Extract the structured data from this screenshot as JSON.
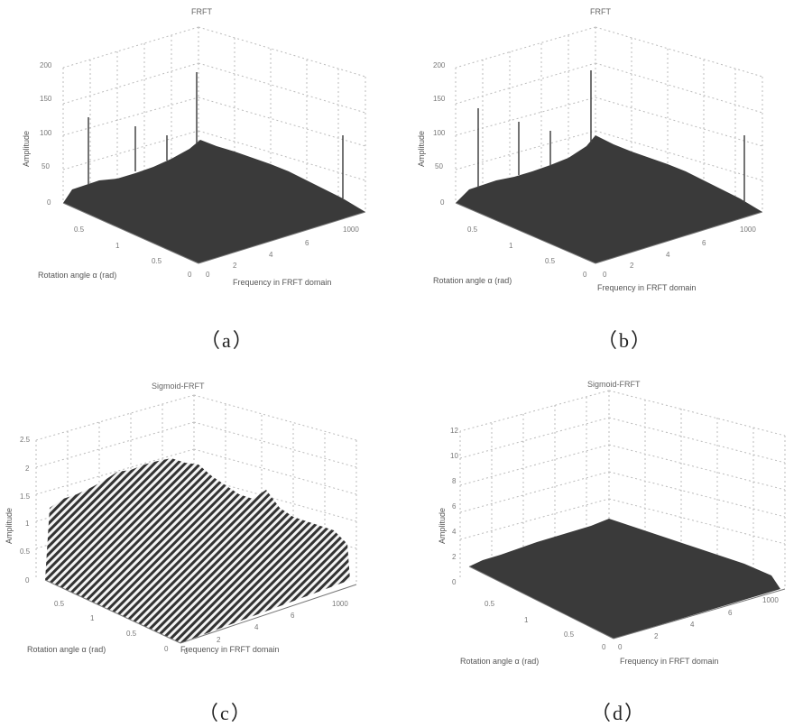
{
  "panels": [
    {
      "id": "a",
      "title": "FRFT",
      "caption": "（a）",
      "ylabel": "Amplitude",
      "xlabel": "Rotation angle α (rad)",
      "zlabel": "Frequency in FRFT domain",
      "yticks": [
        "200",
        "150",
        "100",
        "50",
        "0"
      ],
      "aticks": [
        "0.5",
        "1",
        "0.5",
        "0"
      ],
      "fticks": [
        "0",
        "2",
        "4",
        "6",
        "1000"
      ]
    },
    {
      "id": "b",
      "title": "FRFT",
      "caption": "（b）",
      "ylabel": "Amplitude",
      "xlabel": "Rotation angle α (rad)",
      "zlabel": "Frequency in FRFT domain",
      "yticks": [
        "200",
        "150",
        "100",
        "50",
        "0"
      ],
      "aticks": [
        "0.5",
        "1",
        "0.5",
        "0"
      ],
      "fticks": [
        "0",
        "2",
        "4",
        "6",
        "1000"
      ]
    },
    {
      "id": "c",
      "title": "Sigmoid-FRFT",
      "caption": "（c）",
      "ylabel": "Amplitude",
      "xlabel": "Rotation angle α (rad)",
      "zlabel": "Frequency in FRFT domain",
      "yticks": [
        "2.5",
        "2",
        "1.5",
        "1",
        "0.5",
        "0"
      ],
      "aticks": [
        "0.5",
        "1",
        "0.5",
        "0"
      ],
      "fticks": [
        "0",
        "2",
        "4",
        "6",
        "1000"
      ]
    },
    {
      "id": "d",
      "title": "Sigmoid-FRFT",
      "caption": "（d）",
      "ylabel": "Amplitude",
      "xlabel": "Rotation angle α (rad)",
      "zlabel": "Frequency in FRFT domain",
      "yticks": [
        "12",
        "10",
        "8",
        "6",
        "4",
        "2",
        "0"
      ],
      "aticks": [
        "0.5",
        "1",
        "0.5",
        "0"
      ],
      "fticks": [
        "0",
        "2",
        "4",
        "6",
        "1000"
      ]
    }
  ]
}
